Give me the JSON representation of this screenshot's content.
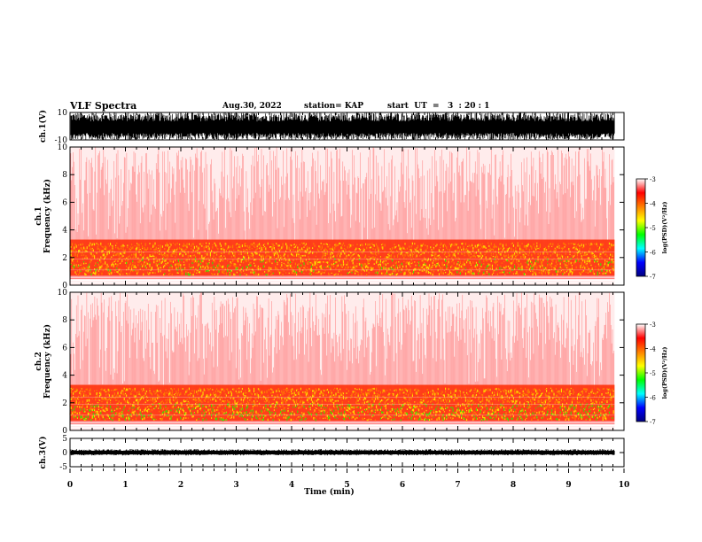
{
  "header": {
    "title": "VLF Spectra",
    "date": "Aug.30, 2022",
    "station": "station= KAP",
    "start": "start  UT  =   3  : 20 : 1"
  },
  "chart_data": [
    {
      "type": "line",
      "panel": "ch1-waveform",
      "ylabel": "ch.1(V)",
      "ylim": [
        -10,
        10
      ],
      "yticks": [
        "10",
        "-10"
      ],
      "xlim": [
        0,
        10
      ]
    },
    {
      "type": "heatmap",
      "panel": "ch1-spectrogram",
      "ylabel": "ch.1\nFrequency  (kHz)",
      "ylim": [
        0,
        10
      ],
      "yticks": [
        "0",
        "2",
        "4",
        "6",
        "8",
        "10"
      ],
      "xlim": [
        0,
        10
      ],
      "data_end_min": 9.83,
      "colorbar": {
        "label": "log(PSD)(V²/Hz)",
        "range": [
          -7,
          -3
        ],
        "ticks": [
          "-3",
          "-4",
          "-5",
          "-6",
          "-7"
        ],
        "colors": [
          "#000080",
          "#0000ff",
          "#00ffff",
          "#00ff00",
          "#ffff00",
          "#ff8000",
          "#ff0000",
          "#ffffff"
        ]
      }
    },
    {
      "type": "heatmap",
      "panel": "ch2-spectrogram",
      "ylabel": "ch.2\nFrequency  (kHz)",
      "ylim": [
        0,
        10
      ],
      "yticks": [
        "0",
        "2",
        "4",
        "6",
        "8",
        "10"
      ],
      "xlim": [
        0,
        10
      ],
      "data_end_min": 9.83,
      "colorbar": {
        "label": "log(PSD)(V²/Hz)",
        "range": [
          -7,
          -3
        ],
        "ticks": [
          "-3",
          "-4",
          "-5",
          "-6",
          "-7"
        ],
        "colors": [
          "#000080",
          "#0000ff",
          "#00ffff",
          "#00ff00",
          "#ffff00",
          "#ff8000",
          "#ff0000",
          "#ffffff"
        ]
      }
    },
    {
      "type": "line",
      "panel": "ch3-waveform",
      "ylabel": "ch.3(V)",
      "ylim": [
        -5,
        5
      ],
      "yticks": [
        "5",
        "0",
        "-5"
      ],
      "xlim": [
        0,
        10
      ],
      "xlabel": "Time  (min)",
      "xticks": [
        "0",
        "1",
        "2",
        "3",
        "4",
        "5",
        "6",
        "7",
        "8",
        "9",
        "10"
      ]
    }
  ]
}
